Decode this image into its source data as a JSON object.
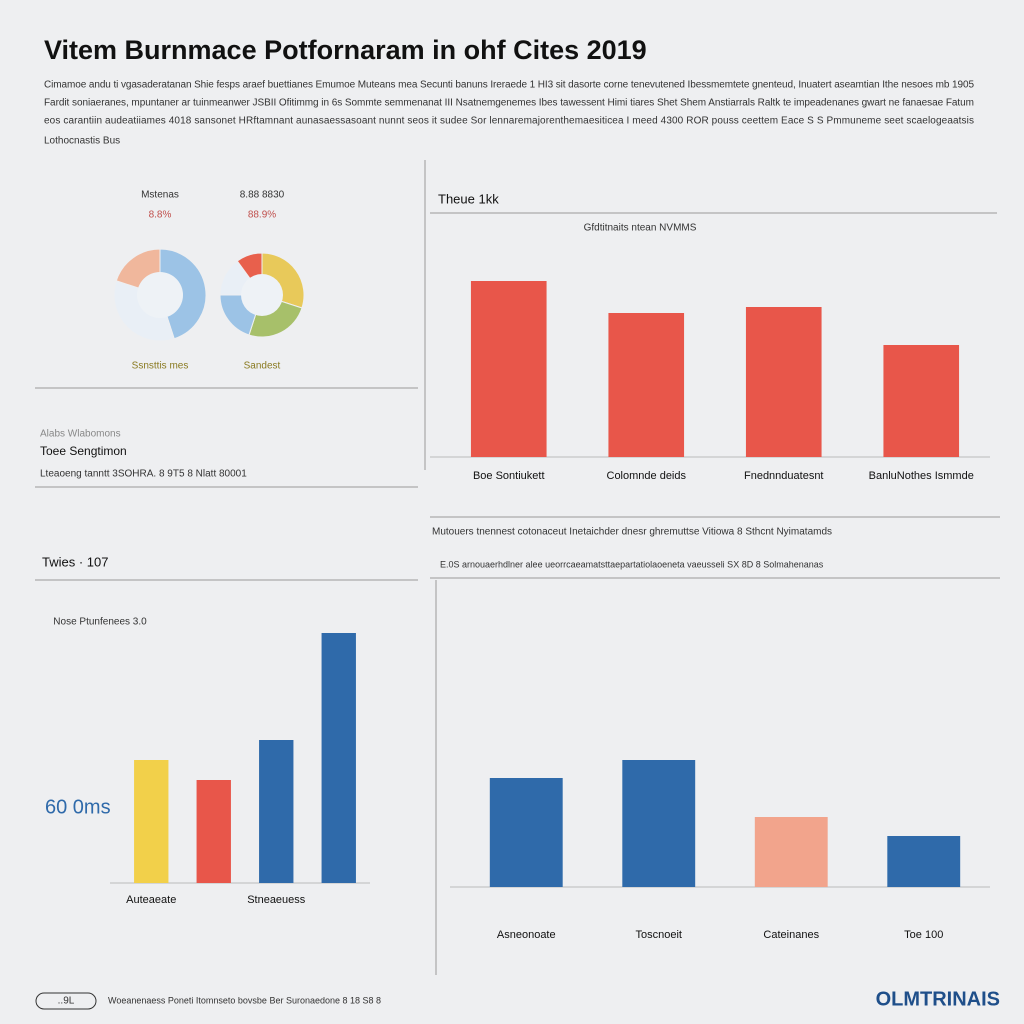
{
  "header": {
    "title": "Vitem Burnmace Potfornaram in ohf Cites 2019",
    "intro": [
      "Cimamoe andu ti vgasaderatanan Shie fesps araef buettianes Emumoe Muteans mea Secunti banuns Ireraede 1 HI3 sit dasorte corne tenevutened Ibessmemtete gnenteud, Inuatert aseamtian Ithe nesoes mb 1905",
      "Fardit soniaeranes, mpuntaner ar tuinmeanwer JSBII Ofitimmg in 6s Sommte semmenanat III Nsatnemgenemes Ibes tawessent Himi tiares Shet Shem Anstiarrals Raltk te impeadenanes gwart ne fanaesae Fatum",
      "eos carantiin audeatiiames 4018 sansonet HRftamnant aunasaessasoant nunnt seos it sudee Sor lennaremajorenthemaesiticea I meed 4300 ROR pouss ceettem Eace S S Pmmuneme seet scaelogeaatsis"
    ],
    "byline": "Lothocnastis Bus"
  },
  "left_panel": {
    "heading": "Toee Sengtimon",
    "note": "Lteaoeng tanntt 3SOHRA. 8 9T5 8 Nlatt 80001",
    "tag": "Alabs Wlabomons"
  },
  "right_panel": {
    "note": "Mutouers tnennest cotonaceut Inetaichder dnesr ghremuttse Vitiowa 8 Sthcnt Nyimatamds",
    "subnote": "E.0S arnouaerhdlner alee ueorrcaeamatsttaepartatiolaoeneta vaeusseli SX 8D 8 Solmahenanas"
  },
  "chart_data": [
    {
      "type": "pie",
      "title": "Mstenas",
      "subtitle": "8.8%",
      "label": "Ssnsttis mes",
      "values": [
        45,
        35,
        20
      ],
      "colors": [
        "#9cc3e6",
        "#e9eff6",
        "#f0b79c"
      ]
    },
    {
      "type": "pie",
      "title": "8.88 8830",
      "subtitle": "88.9%",
      "label": "Sandest",
      "values": [
        30,
        25,
        20,
        15,
        10
      ],
      "colors": [
        "#e8c95a",
        "#a7c06a",
        "#9cc3e6",
        "#e9eff6",
        "#e8604c"
      ]
    },
    {
      "type": "bar",
      "title": "Theue 1kk",
      "subtitle": "Gfdtitnaits ntean NVMMS",
      "categories": [
        "Boe Sontiukett",
        "Colomnde deids",
        "Fnednnduatesnt",
        "BanluNothes Ismmde"
      ],
      "values": [
        88,
        72,
        75,
        56
      ],
      "colors": [
        "#e8564a",
        "#e8564a",
        "#e8564a",
        "#e8564a"
      ],
      "ylim": [
        0,
        100
      ]
    },
    {
      "type": "bar",
      "title": "Twies · 107",
      "subtitle": "Nose Ptunfenees 3.0",
      "annotation": "60 0ms",
      "categories": [
        "Auteaeate",
        null,
        "Stneaeuess",
        null
      ],
      "values": [
        123,
        103,
        143,
        250
      ],
      "colors": [
        "#f2d04a",
        "#e8564a",
        "#2f6aaa",
        "#2f6aaa"
      ],
      "ylim": [
        0,
        250
      ]
    },
    {
      "type": "bar",
      "categories": [
        "Asneonoate",
        "Toscnoeit",
        "Cateinanes",
        "Toe 100"
      ],
      "values": [
        109,
        127,
        70,
        51
      ],
      "colors": [
        "#2f6aaa",
        "#2f6aaa",
        "#f2a48c",
        "#2f6aaa"
      ],
      "ylim": [
        0,
        200
      ]
    }
  ],
  "footer": {
    "badge": "..9L",
    "text": "Woeanenaess Poneti Itomnseto bovsbe Ber Suronaedone 8 18 S8 8",
    "brand": "OLMTRINAIS"
  }
}
